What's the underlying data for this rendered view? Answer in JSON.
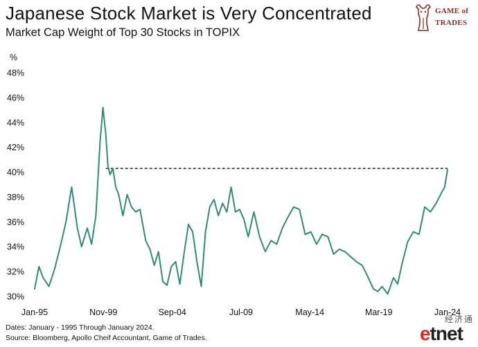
{
  "header": {
    "title": "Japanese Stock Market is Very Concentrated",
    "subtitle": "Market Cap Weight of Top 30 Stocks in TOPIX"
  },
  "logo": {
    "line1": "GAME of",
    "line2": "TRADES",
    "icon": "bull-icon"
  },
  "footer": {
    "line1": "Dates: January - 1995 Through January 2024.",
    "line2": "Source: Bloomberg, Apollo Cheif Accountant, Game of Trades."
  },
  "watermark": {
    "cn": "经济通",
    "en_e": "e",
    "en_rest": "tnet"
  },
  "colors": {
    "line": "#2e8b74",
    "reference": "#111111",
    "brand": "#8b2a22"
  },
  "chart_data": {
    "type": "line",
    "title": "Japanese Stock Market is Very Concentrated",
    "subtitle": "Market Cap Weight of Top 30 Stocks in TOPIX",
    "ylabel": "%",
    "xlabel": "",
    "ylim": [
      30,
      48
    ],
    "yticks": [
      30,
      32,
      34,
      36,
      38,
      40,
      42,
      44,
      46,
      48
    ],
    "ytick_labels": [
      "30%",
      "32%",
      "34%",
      "36%",
      "38%",
      "40%",
      "42%",
      "44%",
      "46%",
      "48%"
    ],
    "xlim": [
      1995.0,
      2024.0
    ],
    "xtick_positions": [
      1995.0,
      1999.83,
      2004.67,
      2009.5,
      2014.33,
      2019.17,
      2024.0
    ],
    "xtick_labels": [
      "Jan-95",
      "Nov-99",
      "Sep-04",
      "Jul-09",
      "May-14",
      "Mar-19",
      "Jan-24"
    ],
    "grid": false,
    "legend": "none",
    "series": [
      {
        "x": [
          1995.0,
          1995.3,
          1995.6,
          1996.0,
          1996.4,
          1996.8,
          1997.2,
          1997.6,
          1998.0,
          1998.3,
          1998.7,
          1999.0,
          1999.3,
          1999.6,
          1999.8,
          2000.0,
          2000.15,
          2000.3,
          2000.5,
          2000.7,
          2000.9,
          2001.2,
          2001.5,
          2001.8,
          2002.1,
          2002.4,
          2002.8,
          2003.1,
          2003.4,
          2003.7,
          2004.0,
          2004.3,
          2004.6,
          2004.9,
          2005.2,
          2005.5,
          2005.8,
          2006.1,
          2006.4,
          2006.7,
          2007.0,
          2007.3,
          2007.6,
          2007.9,
          2008.2,
          2008.5,
          2008.8,
          2009.1,
          2009.4,
          2009.7,
          2010.0,
          2010.4,
          2010.8,
          2011.2,
          2011.6,
          2012.0,
          2012.4,
          2012.8,
          2013.2,
          2013.6,
          2014.0,
          2014.4,
          2014.8,
          2015.2,
          2015.6,
          2016.0,
          2016.4,
          2016.8,
          2017.2,
          2017.6,
          2018.0,
          2018.4,
          2018.8,
          2019.1,
          2019.4,
          2019.8,
          2020.2,
          2020.5,
          2020.8,
          2021.2,
          2021.6,
          2022.0,
          2022.4,
          2022.8,
          2023.2,
          2023.6,
          2023.8,
          2024.0
        ],
        "y": [
          30.6,
          32.4,
          31.5,
          30.8,
          32.2,
          34.0,
          36.0,
          38.8,
          35.5,
          34.0,
          35.5,
          34.2,
          36.5,
          42.5,
          45.2,
          43.0,
          40.5,
          39.8,
          40.3,
          38.8,
          38.2,
          36.5,
          38.2,
          37.2,
          36.8,
          37.0,
          34.5,
          33.8,
          32.5,
          33.6,
          31.2,
          30.9,
          32.4,
          32.8,
          31.0,
          33.5,
          35.8,
          35.2,
          32.8,
          30.8,
          35.2,
          37.2,
          37.8,
          36.5,
          37.5,
          36.8,
          38.8,
          36.8,
          37.0,
          36.2,
          34.8,
          36.8,
          34.8,
          33.6,
          34.5,
          34.2,
          35.5,
          36.4,
          37.2,
          37.0,
          35.0,
          35.2,
          34.2,
          35.0,
          34.8,
          33.4,
          33.8,
          33.6,
          33.2,
          32.8,
          32.5,
          31.6,
          30.6,
          30.4,
          30.8,
          30.2,
          31.5,
          31.0,
          32.6,
          34.4,
          35.2,
          35.0,
          37.2,
          36.8,
          37.5,
          38.4,
          38.8,
          40.2
        ]
      }
    ],
    "reference_line": {
      "y": 40.3,
      "x_start": 2000.0,
      "x_end": 2024.0,
      "style": "dashed"
    }
  }
}
